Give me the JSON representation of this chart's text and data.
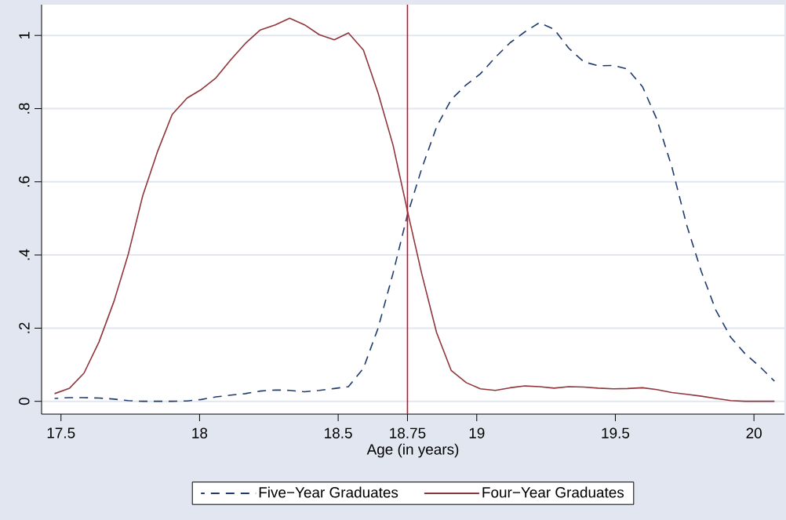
{
  "chart_data": {
    "type": "line",
    "xlabel": "Age (in years)",
    "x": [
      17.477,
      17.531,
      17.583,
      17.637,
      17.692,
      17.742,
      17.795,
      17.849,
      17.901,
      17.955,
      18.006,
      18.059,
      18.113,
      18.165,
      18.219,
      18.273,
      18.325,
      18.379,
      18.432,
      18.486,
      18.537,
      18.591,
      18.644,
      18.698,
      18.75,
      18.801,
      18.855,
      18.908,
      18.962,
      19.013,
      19.067,
      19.12,
      19.174,
      19.226,
      19.279,
      19.332,
      19.386,
      19.438,
      19.493,
      19.544,
      19.598,
      19.65,
      19.704,
      19.758,
      19.81,
      19.862,
      19.916,
      19.968,
      20.021,
      20.074
    ],
    "series": [
      {
        "name": "Five−Year Graduates",
        "color": "#1f3b6e",
        "line_style": "dashed",
        "values": [
          0.008,
          0.01,
          0.01,
          0.009,
          0.006,
          0.002,
          0,
          0,
          0,
          0.001,
          0.005,
          0.012,
          0.017,
          0.021,
          0.028,
          0.031,
          0.03,
          0.026,
          0.03,
          0.035,
          0.04,
          0.09,
          0.2,
          0.35,
          0.51,
          0.635,
          0.75,
          0.825,
          0.865,
          0.895,
          0.94,
          0.98,
          1.01,
          1.035,
          1.017,
          0.965,
          0.928,
          0.917,
          0.918,
          0.908,
          0.86,
          0.77,
          0.64,
          0.48,
          0.355,
          0.25,
          0.175,
          0.13,
          0.095,
          0.055
        ]
      },
      {
        "name": "Four−Year Graduates",
        "color": "#90353b",
        "line_style": "solid",
        "values": [
          0.021,
          0.036,
          0.077,
          0.162,
          0.275,
          0.4,
          0.562,
          0.684,
          0.784,
          0.829,
          0.852,
          0.884,
          0.934,
          0.978,
          1.015,
          1.029,
          1.047,
          1.029,
          1.002,
          0.988,
          1.007,
          0.96,
          0.843,
          0.7,
          0.52,
          0.35,
          0.188,
          0.084,
          0.051,
          0.034,
          0.03,
          0.037,
          0.042,
          0.04,
          0.036,
          0.04,
          0.039,
          0.036,
          0.034,
          0.035,
          0.037,
          0.032,
          0.024,
          0.019,
          0.014,
          0.008,
          0.002,
          0,
          0,
          0
        ]
      }
    ],
    "xlim": [
      17.43,
      20.11
    ],
    "ylim": [
      -0.035,
      1.084
    ],
    "xticks": [
      17.5,
      18,
      18.5,
      18.75,
      19,
      19.5,
      20
    ],
    "yticks": [
      0,
      {
        "value": 0.2,
        "label": ".2"
      },
      {
        "value": 0.4,
        "label": ".4"
      },
      {
        "value": 0.6,
        "label": ".6"
      },
      {
        "value": 0.8,
        "label": ".8"
      },
      1
    ],
    "ref_lines": [
      {
        "axis": "x",
        "value": 18.75,
        "color": "#c8102e"
      }
    ],
    "grid": "y",
    "legend": "bottom"
  }
}
